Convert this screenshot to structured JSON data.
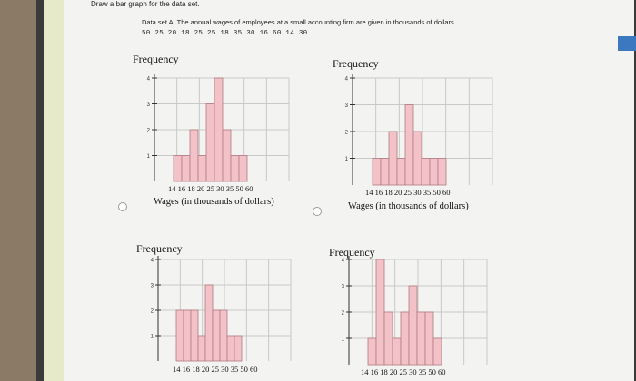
{
  "instruction": "Draw a bar graph for the data set.",
  "dataset": {
    "title": "Data set A: The annual wages of employees at a small accounting firm are given in thousands of dollars.",
    "values_text": "50 25 20 18 25 25 18 35 30 16 60 14 30"
  },
  "colors": {
    "bar_fill": "#f2c2c8",
    "bar_stroke": "#b07a80",
    "grid": "#c8c8c8",
    "axis": "#333333"
  },
  "chart_data": [
    {
      "type": "bar",
      "ylabel": "Frequency",
      "xlabel": "Wages (in thousands of dollars)",
      "categories": [
        "14",
        "16",
        "18",
        "20",
        "25",
        "30",
        "35",
        "50",
        "60"
      ],
      "tick_text": "14 16 18 20 25 30 35 50 60",
      "values": [
        1,
        1,
        2,
        1,
        3,
        4,
        2,
        1,
        1
      ],
      "ylim": [
        0,
        4
      ],
      "yticks": [
        1,
        2,
        3,
        4
      ],
      "grid": true
    },
    {
      "type": "bar",
      "ylabel": "Frequency",
      "xlabel": "Wages (in thousands of dollars)",
      "categories": [
        "14",
        "16",
        "18",
        "20",
        "25",
        "30",
        "35",
        "50",
        "60"
      ],
      "tick_text": "14 16 18 20 25 30 35 50 60",
      "values": [
        1,
        1,
        2,
        1,
        3,
        2,
        1,
        1,
        1
      ],
      "ylim": [
        0,
        4
      ],
      "yticks": [
        1,
        2,
        3,
        4
      ],
      "grid": true
    },
    {
      "type": "bar",
      "ylabel": "Frequency",
      "xlabel": "",
      "categories": [
        "14",
        "16",
        "18",
        "20",
        "25",
        "30",
        "35",
        "50",
        "60"
      ],
      "tick_text": "14 16 18 20 25 30 35 50 60",
      "values": [
        2,
        2,
        2,
        1,
        3,
        2,
        2,
        1,
        1
      ],
      "ylim": [
        0,
        4
      ],
      "yticks": [
        1,
        2,
        3,
        4
      ],
      "grid": true
    },
    {
      "type": "bar",
      "ylabel": "Frequency",
      "xlabel": "",
      "categories": [
        "14",
        "16",
        "18",
        "20",
        "25",
        "30",
        "35",
        "50",
        "60"
      ],
      "tick_text": "14 16 18 20 25 30 35 50 60",
      "values": [
        1,
        4,
        2,
        1,
        2,
        3,
        2,
        2,
        1
      ],
      "ylim": [
        0,
        4
      ],
      "yticks": [
        1,
        2,
        3,
        4
      ],
      "grid": true
    }
  ]
}
